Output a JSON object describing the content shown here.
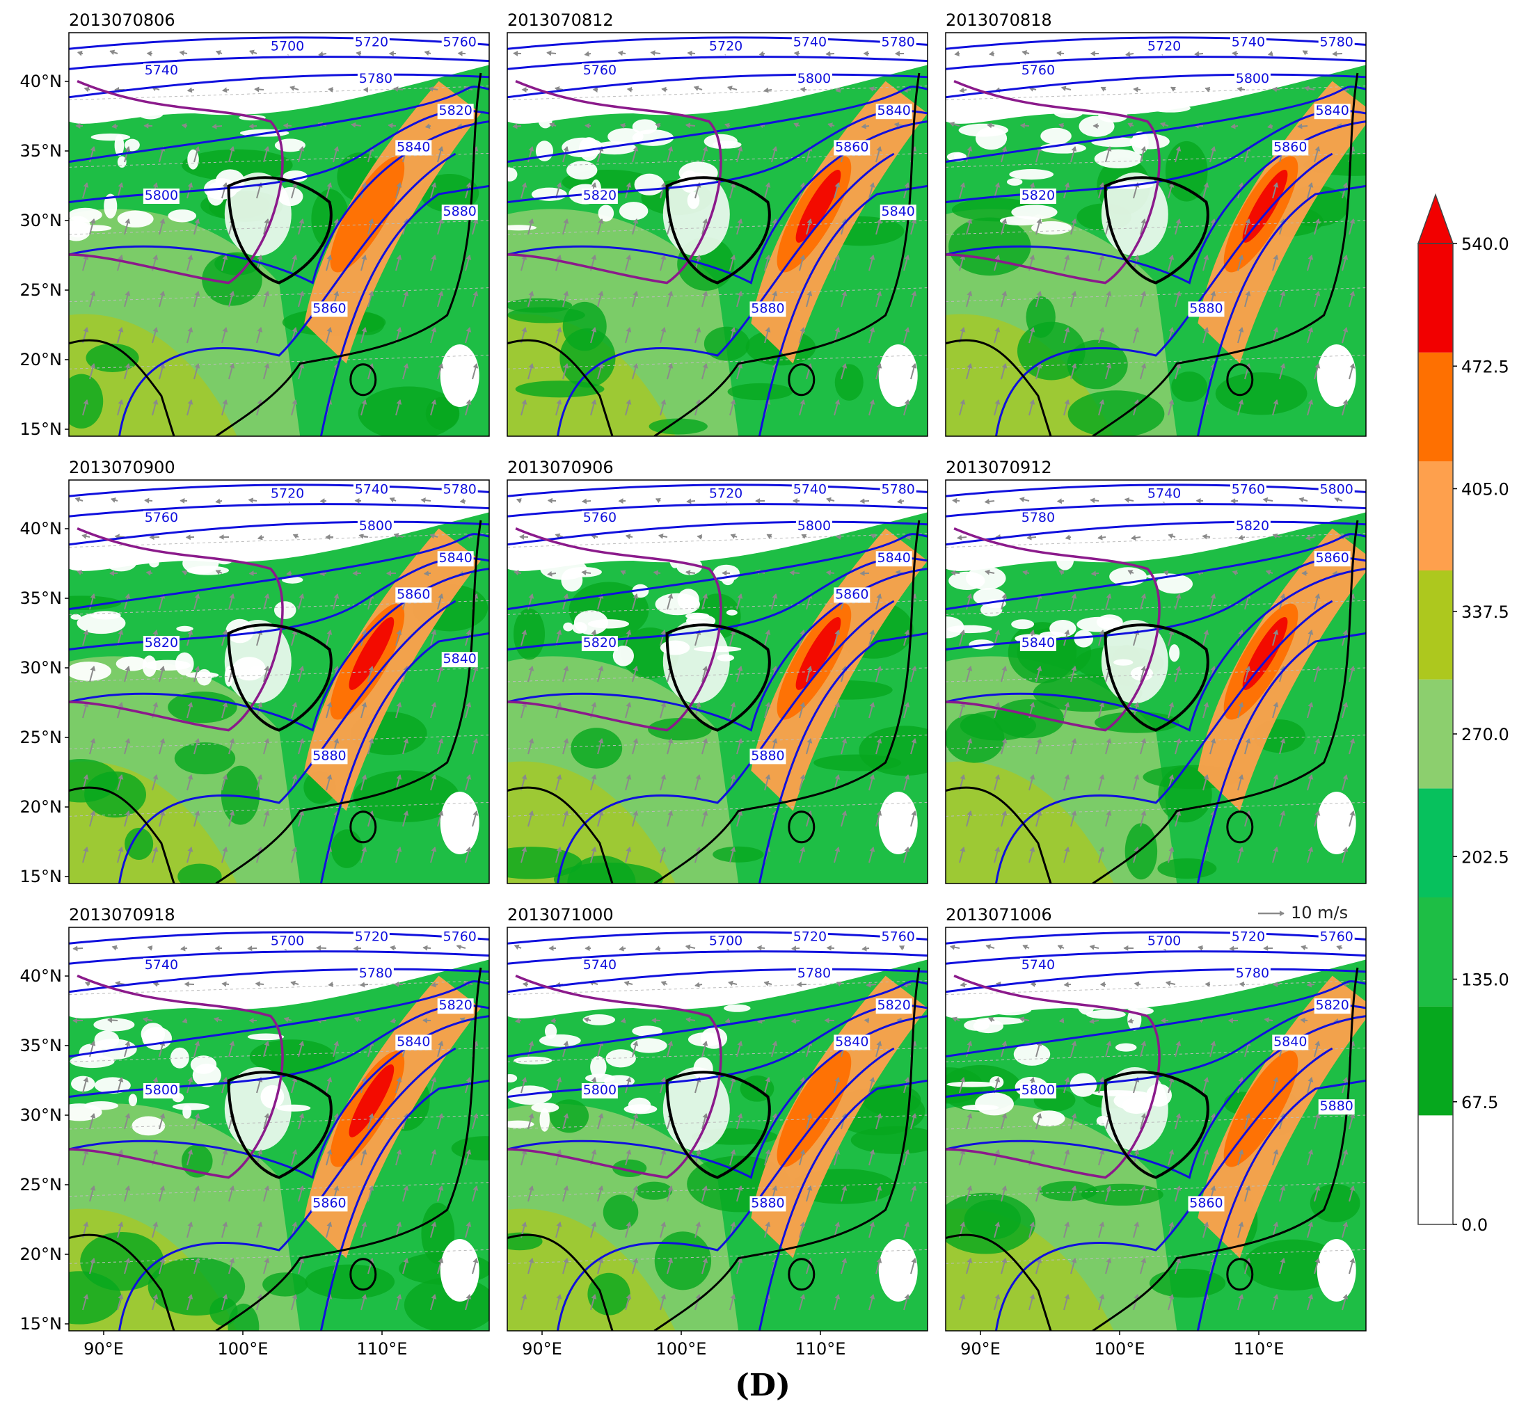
{
  "figure_label": "(D)",
  "panels": [
    {
      "time": "2013070806",
      "contours": [
        "5700",
        "5720",
        "5740",
        "5760",
        "5780",
        "5800",
        "5820",
        "5840",
        "5860",
        "5880"
      ]
    },
    {
      "time": "2013070812",
      "contours": [
        "5720",
        "5740",
        "5760",
        "5780",
        "5800",
        "5820",
        "5840",
        "5860",
        "5880",
        "5840"
      ]
    },
    {
      "time": "2013070818",
      "contours": [
        "5720",
        "5740",
        "5760",
        "5780",
        "5800",
        "5820",
        "5840",
        "5860",
        "5880"
      ]
    },
    {
      "time": "2013070900",
      "contours": [
        "5720",
        "5740",
        "5760",
        "5780",
        "5800",
        "5820",
        "5840",
        "5860",
        "5880",
        "5840"
      ]
    },
    {
      "time": "2013070906",
      "contours": [
        "5720",
        "5740",
        "5760",
        "5780",
        "5800",
        "5820",
        "5840",
        "5860",
        "5880"
      ]
    },
    {
      "time": "2013070912",
      "contours": [
        "5740",
        "5760",
        "5780",
        "5800",
        "5820",
        "5840",
        "5860"
      ]
    },
    {
      "time": "2013070918",
      "contours": [
        "5700",
        "5720",
        "5740",
        "5760",
        "5780",
        "5800",
        "5820",
        "5840",
        "5860"
      ]
    },
    {
      "time": "2013071000",
      "contours": [
        "5700",
        "5720",
        "5740",
        "5760",
        "5780",
        "5800",
        "5820",
        "5840",
        "5880"
      ]
    },
    {
      "time": "2013071006",
      "contours": [
        "5700",
        "5720",
        "5740",
        "5760",
        "5780",
        "5800",
        "5820",
        "5840",
        "5860",
        "5880"
      ]
    }
  ],
  "lat_ticks": [
    "40°N",
    "35°N",
    "30°N",
    "25°N",
    "20°N",
    "15°N"
  ],
  "lon_ticks": [
    "90°E",
    "100°E",
    "110°E"
  ],
  "wind_reference": "10 m/s",
  "colorbar": {
    "ticks": [
      "0.0",
      "67.5",
      "135.0",
      "202.5",
      "270.0",
      "337.5",
      "405.0",
      "472.5",
      "540.0"
    ],
    "colors": [
      "#ffffff",
      "#06a81e",
      "#1ebe45",
      "#07c15d",
      "#8ccf6e",
      "#adc81e",
      "#fea04d",
      "#fe7001",
      "#f20000"
    ]
  },
  "colors": {
    "contour": "#1010dd",
    "boundary_black": "#000000",
    "boundary_purple": "#8b1a8b",
    "wind_arrow": "#8a8a8a"
  }
}
